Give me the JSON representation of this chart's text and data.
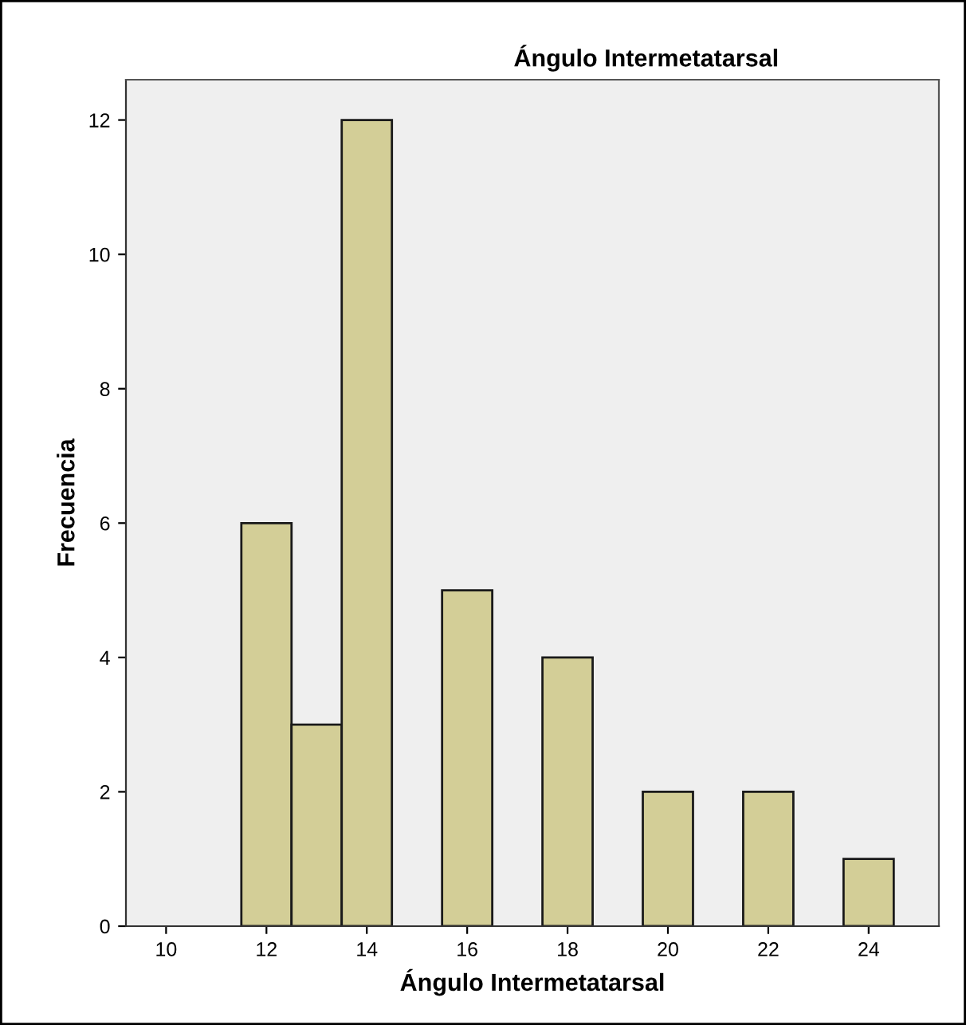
{
  "chart_data": {
    "type": "histogram",
    "title": "Ángulo Intermetatarsal",
    "xlabel": "Ángulo Intermetatarsal",
    "ylabel": "Frecuencia",
    "bins": [
      11.5,
      12.5,
      13.5,
      14.5,
      15.5,
      16.5,
      17.5,
      18.5,
      19.5,
      20.5,
      21.5,
      22.5,
      23.5,
      24.5
    ],
    "values": [
      6,
      3,
      12,
      0,
      5,
      0,
      4,
      0,
      2,
      0,
      2,
      0,
      1
    ],
    "color": "#d3ce97",
    "xlim": [
      9.2,
      25.4
    ],
    "xticks": [
      10,
      12,
      14,
      16,
      18,
      20,
      22,
      24
    ],
    "ylim": [
      0,
      12.6
    ],
    "yticks": [
      0,
      2,
      4,
      6,
      8,
      10,
      12
    ],
    "grid": false,
    "legend": false
  }
}
